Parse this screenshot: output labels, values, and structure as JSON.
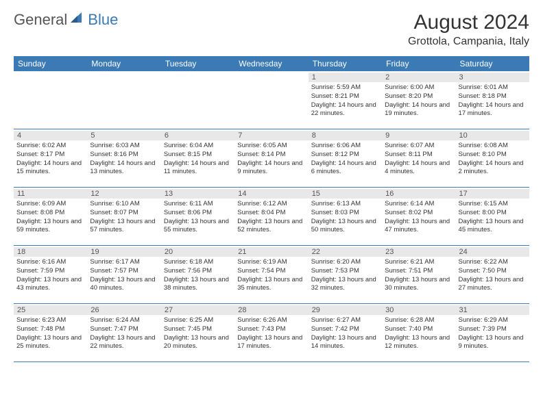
{
  "logo": {
    "general": "General",
    "blue": "Blue"
  },
  "title": "August 2024",
  "location": "Grottola, Campania, Italy",
  "daynames": [
    "Sunday",
    "Monday",
    "Tuesday",
    "Wednesday",
    "Thursday",
    "Friday",
    "Saturday"
  ],
  "colors": {
    "header_bg": "#3b7ab5",
    "header_text": "#ffffff",
    "daynum_bg": "#e8e8e8",
    "text": "#333333",
    "border": "#3b7ab5"
  },
  "weeks": [
    [
      {
        "num": "",
        "sunrise": "",
        "sunset": "",
        "daylight": ""
      },
      {
        "num": "",
        "sunrise": "",
        "sunset": "",
        "daylight": ""
      },
      {
        "num": "",
        "sunrise": "",
        "sunset": "",
        "daylight": ""
      },
      {
        "num": "",
        "sunrise": "",
        "sunset": "",
        "daylight": ""
      },
      {
        "num": "1",
        "sunrise": "Sunrise: 5:59 AM",
        "sunset": "Sunset: 8:21 PM",
        "daylight": "Daylight: 14 hours and 22 minutes."
      },
      {
        "num": "2",
        "sunrise": "Sunrise: 6:00 AM",
        "sunset": "Sunset: 8:20 PM",
        "daylight": "Daylight: 14 hours and 19 minutes."
      },
      {
        "num": "3",
        "sunrise": "Sunrise: 6:01 AM",
        "sunset": "Sunset: 8:18 PM",
        "daylight": "Daylight: 14 hours and 17 minutes."
      }
    ],
    [
      {
        "num": "4",
        "sunrise": "Sunrise: 6:02 AM",
        "sunset": "Sunset: 8:17 PM",
        "daylight": "Daylight: 14 hours and 15 minutes."
      },
      {
        "num": "5",
        "sunrise": "Sunrise: 6:03 AM",
        "sunset": "Sunset: 8:16 PM",
        "daylight": "Daylight: 14 hours and 13 minutes."
      },
      {
        "num": "6",
        "sunrise": "Sunrise: 6:04 AM",
        "sunset": "Sunset: 8:15 PM",
        "daylight": "Daylight: 14 hours and 11 minutes."
      },
      {
        "num": "7",
        "sunrise": "Sunrise: 6:05 AM",
        "sunset": "Sunset: 8:14 PM",
        "daylight": "Daylight: 14 hours and 9 minutes."
      },
      {
        "num": "8",
        "sunrise": "Sunrise: 6:06 AM",
        "sunset": "Sunset: 8:12 PM",
        "daylight": "Daylight: 14 hours and 6 minutes."
      },
      {
        "num": "9",
        "sunrise": "Sunrise: 6:07 AM",
        "sunset": "Sunset: 8:11 PM",
        "daylight": "Daylight: 14 hours and 4 minutes."
      },
      {
        "num": "10",
        "sunrise": "Sunrise: 6:08 AM",
        "sunset": "Sunset: 8:10 PM",
        "daylight": "Daylight: 14 hours and 2 minutes."
      }
    ],
    [
      {
        "num": "11",
        "sunrise": "Sunrise: 6:09 AM",
        "sunset": "Sunset: 8:08 PM",
        "daylight": "Daylight: 13 hours and 59 minutes."
      },
      {
        "num": "12",
        "sunrise": "Sunrise: 6:10 AM",
        "sunset": "Sunset: 8:07 PM",
        "daylight": "Daylight: 13 hours and 57 minutes."
      },
      {
        "num": "13",
        "sunrise": "Sunrise: 6:11 AM",
        "sunset": "Sunset: 8:06 PM",
        "daylight": "Daylight: 13 hours and 55 minutes."
      },
      {
        "num": "14",
        "sunrise": "Sunrise: 6:12 AM",
        "sunset": "Sunset: 8:04 PM",
        "daylight": "Daylight: 13 hours and 52 minutes."
      },
      {
        "num": "15",
        "sunrise": "Sunrise: 6:13 AM",
        "sunset": "Sunset: 8:03 PM",
        "daylight": "Daylight: 13 hours and 50 minutes."
      },
      {
        "num": "16",
        "sunrise": "Sunrise: 6:14 AM",
        "sunset": "Sunset: 8:02 PM",
        "daylight": "Daylight: 13 hours and 47 minutes."
      },
      {
        "num": "17",
        "sunrise": "Sunrise: 6:15 AM",
        "sunset": "Sunset: 8:00 PM",
        "daylight": "Daylight: 13 hours and 45 minutes."
      }
    ],
    [
      {
        "num": "18",
        "sunrise": "Sunrise: 6:16 AM",
        "sunset": "Sunset: 7:59 PM",
        "daylight": "Daylight: 13 hours and 43 minutes."
      },
      {
        "num": "19",
        "sunrise": "Sunrise: 6:17 AM",
        "sunset": "Sunset: 7:57 PM",
        "daylight": "Daylight: 13 hours and 40 minutes."
      },
      {
        "num": "20",
        "sunrise": "Sunrise: 6:18 AM",
        "sunset": "Sunset: 7:56 PM",
        "daylight": "Daylight: 13 hours and 38 minutes."
      },
      {
        "num": "21",
        "sunrise": "Sunrise: 6:19 AM",
        "sunset": "Sunset: 7:54 PM",
        "daylight": "Daylight: 13 hours and 35 minutes."
      },
      {
        "num": "22",
        "sunrise": "Sunrise: 6:20 AM",
        "sunset": "Sunset: 7:53 PM",
        "daylight": "Daylight: 13 hours and 32 minutes."
      },
      {
        "num": "23",
        "sunrise": "Sunrise: 6:21 AM",
        "sunset": "Sunset: 7:51 PM",
        "daylight": "Daylight: 13 hours and 30 minutes."
      },
      {
        "num": "24",
        "sunrise": "Sunrise: 6:22 AM",
        "sunset": "Sunset: 7:50 PM",
        "daylight": "Daylight: 13 hours and 27 minutes."
      }
    ],
    [
      {
        "num": "25",
        "sunrise": "Sunrise: 6:23 AM",
        "sunset": "Sunset: 7:48 PM",
        "daylight": "Daylight: 13 hours and 25 minutes."
      },
      {
        "num": "26",
        "sunrise": "Sunrise: 6:24 AM",
        "sunset": "Sunset: 7:47 PM",
        "daylight": "Daylight: 13 hours and 22 minutes."
      },
      {
        "num": "27",
        "sunrise": "Sunrise: 6:25 AM",
        "sunset": "Sunset: 7:45 PM",
        "daylight": "Daylight: 13 hours and 20 minutes."
      },
      {
        "num": "28",
        "sunrise": "Sunrise: 6:26 AM",
        "sunset": "Sunset: 7:43 PM",
        "daylight": "Daylight: 13 hours and 17 minutes."
      },
      {
        "num": "29",
        "sunrise": "Sunrise: 6:27 AM",
        "sunset": "Sunset: 7:42 PM",
        "daylight": "Daylight: 13 hours and 14 minutes."
      },
      {
        "num": "30",
        "sunrise": "Sunrise: 6:28 AM",
        "sunset": "Sunset: 7:40 PM",
        "daylight": "Daylight: 13 hours and 12 minutes."
      },
      {
        "num": "31",
        "sunrise": "Sunrise: 6:29 AM",
        "sunset": "Sunset: 7:39 PM",
        "daylight": "Daylight: 13 hours and 9 minutes."
      }
    ]
  ]
}
